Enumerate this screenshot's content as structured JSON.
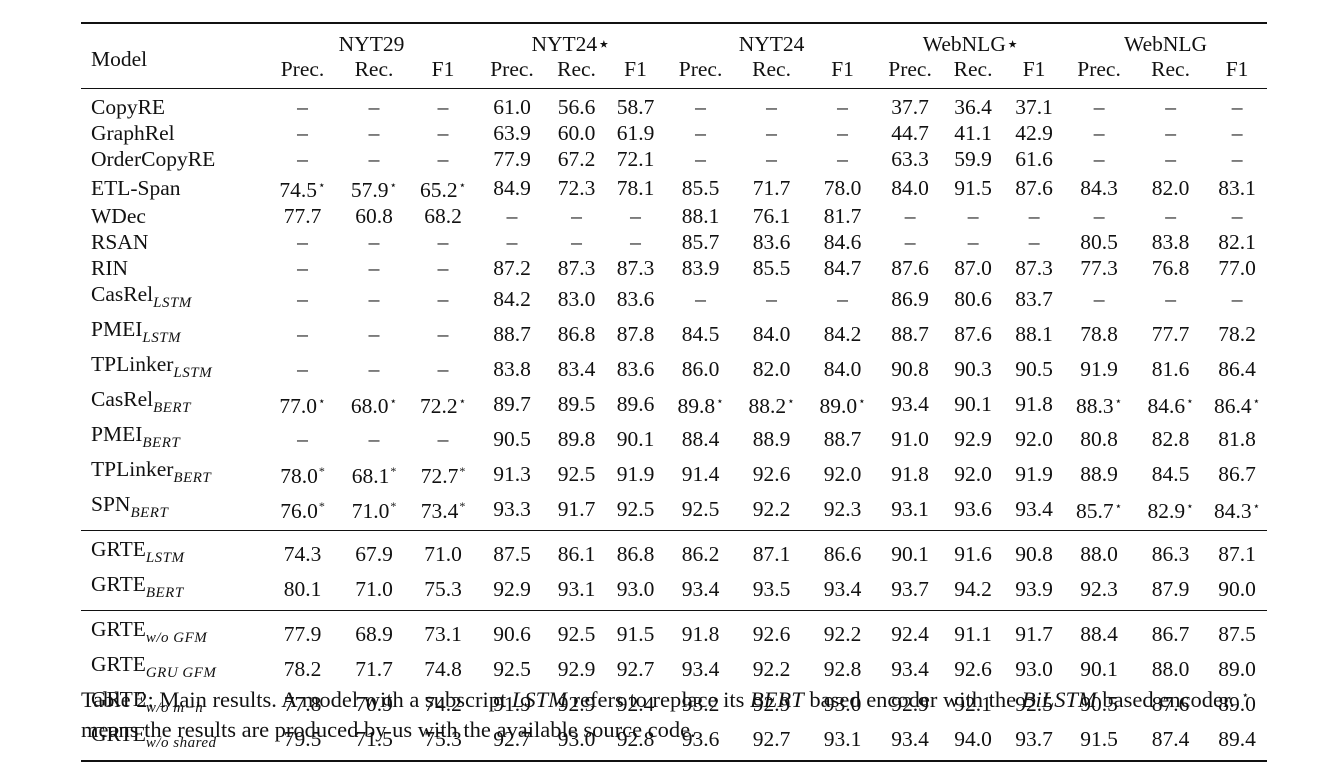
{
  "columns": {
    "model_header": "Model",
    "datasets": [
      "NYT29",
      "NYT24⋆",
      "NYT24",
      "WebNLG⋆",
      "WebNLG"
    ],
    "metrics": [
      "Prec.",
      "Rec.",
      "F1"
    ]
  },
  "sections": [
    {
      "rows": [
        {
          "name": "CopyRE",
          "sub": "",
          "cells": [
            "–",
            "–",
            "–",
            "61.0",
            "56.6",
            "58.7",
            "–",
            "–",
            "–",
            "37.7",
            "36.4",
            "37.1",
            "–",
            "–",
            "–"
          ]
        },
        {
          "name": "GraphRel",
          "sub": "",
          "cells": [
            "–",
            "–",
            "–",
            "63.9",
            "60.0",
            "61.9",
            "–",
            "–",
            "–",
            "44.7",
            "41.1",
            "42.9",
            "–",
            "–",
            "–"
          ]
        },
        {
          "name": "OrderCopyRE",
          "sub": "",
          "cells": [
            "–",
            "–",
            "–",
            "77.9",
            "67.2",
            "72.1",
            "–",
            "–",
            "–",
            "63.3",
            "59.9",
            "61.6",
            "–",
            "–",
            "–"
          ]
        },
        {
          "name": "ETL-Span",
          "sub": "",
          "cells": [
            "74.5⋆",
            "57.9⋆",
            "65.2⋆",
            "84.9",
            "72.3",
            "78.1",
            "85.5",
            "71.7",
            "78.0",
            "84.0",
            "91.5",
            "87.6",
            "84.3",
            "82.0",
            "83.1"
          ]
        },
        {
          "name": "WDec",
          "sub": "",
          "cells": [
            "77.7",
            "60.8",
            "68.2",
            "–",
            "–",
            "–",
            "88.1",
            "76.1",
            "81.7",
            "–",
            "–",
            "–",
            "–",
            "–",
            "–"
          ]
        },
        {
          "name": "RSAN",
          "sub": "",
          "cells": [
            "–",
            "–",
            "–",
            "–",
            "–",
            "–",
            "85.7",
            "83.6",
            "84.6",
            "–",
            "–",
            "–",
            "80.5",
            "83.8",
            "82.1"
          ]
        },
        {
          "name": "RIN",
          "sub": "",
          "cells": [
            "–",
            "–",
            "–",
            "87.2",
            "87.3",
            "87.3",
            "83.9",
            "85.5",
            "84.7",
            "87.6",
            "87.0",
            "87.3",
            "77.3",
            "76.8",
            "77.0"
          ]
        },
        {
          "name": "CasRel",
          "sub": "LSTM",
          "cells": [
            "–",
            "–",
            "–",
            "84.2",
            "83.0",
            "83.6",
            "–",
            "–",
            "–",
            "86.9",
            "80.6",
            "83.7",
            "–",
            "–",
            "–"
          ]
        },
        {
          "name": "PMEI",
          "sub": "LSTM",
          "cells": [
            "–",
            "–",
            "–",
            "88.7",
            "86.8",
            "87.8",
            "84.5",
            "84.0",
            "84.2",
            "88.7",
            "87.6",
            "88.1",
            "78.8",
            "77.7",
            "78.2"
          ]
        },
        {
          "name": "TPLinker",
          "sub": "LSTM",
          "cells": [
            "–",
            "–",
            "–",
            "83.8",
            "83.4",
            "83.6",
            "86.0",
            "82.0",
            "84.0",
            "90.8",
            "90.3",
            "90.5",
            "91.9",
            "81.6",
            "86.4"
          ]
        },
        {
          "name": "CasRel",
          "sub": "BERT",
          "cells": [
            "77.0⋆",
            "68.0⋆",
            "72.2⋆",
            "89.7",
            "89.5",
            "89.6",
            "89.8⋆",
            "88.2⋆",
            "89.0⋆",
            "93.4",
            "90.1",
            "91.8",
            "88.3⋆",
            "84.6⋆",
            "86.4⋆"
          ]
        },
        {
          "name": "PMEI",
          "sub": "BERT",
          "cells": [
            "–",
            "–",
            "–",
            "90.5",
            "89.8",
            "90.1",
            "88.4",
            "88.9",
            "88.7",
            "91.0",
            "92.9",
            "92.0",
            "80.8",
            "82.8",
            "81.8"
          ]
        },
        {
          "name": "TPLinker",
          "sub": "BERT",
          "cells": [
            "78.0*",
            "68.1*",
            "72.7*",
            "91.3",
            "92.5",
            "91.9",
            "91.4",
            "92.6",
            "92.0",
            "91.8",
            "92.0",
            "91.9",
            "88.9",
            "84.5",
            "86.7"
          ]
        },
        {
          "name": "SPN",
          "sub": "BERT",
          "cells": [
            "76.0*",
            "71.0*",
            "73.4*",
            "93.3",
            "91.7",
            "92.5",
            "92.5",
            "92.2",
            "92.3",
            "93.1",
            "93.6",
            "93.4",
            "85.7⋆",
            "82.9⋆",
            "84.3⋆"
          ],
          "bold": [
            3
          ]
        }
      ]
    },
    {
      "rows": [
        {
          "name": "GRTE",
          "sub": "LSTM",
          "cells": [
            "74.3",
            "67.9",
            "71.0",
            "87.5",
            "86.1",
            "86.8",
            "86.2",
            "87.1",
            "86.6",
            "90.1",
            "91.6",
            "90.8",
            "88.0",
            "86.3",
            "87.1"
          ]
        },
        {
          "name": "GRTE",
          "sub": "BERT",
          "cells": [
            "80.1",
            "71.0",
            "75.3",
            "92.9",
            "93.1",
            "93.0",
            "93.4",
            "93.5",
            "93.4",
            "93.7",
            "94.2",
            "93.9",
            "92.3",
            "87.9",
            "90.0"
          ],
          "bold": [
            0,
            1,
            2,
            4,
            5,
            6,
            7,
            8,
            9,
            10,
            11,
            12,
            13,
            14
          ]
        }
      ]
    },
    {
      "rows": [
        {
          "name": "GRTE",
          "sub": "w/o GFM",
          "cells": [
            "77.9",
            "68.9",
            "73.1",
            "90.6",
            "92.5",
            "91.5",
            "91.8",
            "92.6",
            "92.2",
            "92.4",
            "91.1",
            "91.7",
            "88.4",
            "86.7",
            "87.5"
          ]
        },
        {
          "name": "GRTE",
          "sub": "GRU GFM",
          "cells": [
            "78.2",
            "71.7",
            "74.8",
            "92.5",
            "92.9",
            "92.7",
            "93.4",
            "92.2",
            "92.8",
            "93.4",
            "92.6",
            "93.0",
            "90.1",
            "88.0",
            "89.0"
          ],
          "bold": [
            1,
            13
          ]
        },
        {
          "name": "GRTE",
          "sub": "w/o m−h",
          "cells": [
            "77.8",
            "70.9",
            "74.2",
            "91.9",
            "92.9",
            "92.4",
            "93.2",
            "92.9",
            "93.0",
            "92.9",
            "92.1",
            "92.5",
            "90.5",
            "87.6",
            "89.0"
          ]
        },
        {
          "name": "GRTE",
          "sub": "w/o shared",
          "cells": [
            "79.5",
            "71.5",
            "75.3",
            "92.7",
            "93.0",
            "92.8",
            "93.6",
            "92.7",
            "93.1",
            "93.4",
            "94.0",
            "93.7",
            "91.5",
            "87.4",
            "89.4"
          ],
          "bold": [
            2,
            6
          ]
        }
      ]
    }
  ],
  "caption": {
    "label": "Table 2:",
    "t1": " Main results. A model with a subscript ",
    "lstm": "LSTM",
    "t2": " refers to replace its ",
    "bert": "BERT",
    "t3": " based encoder with the ",
    "bilstm": "BiLSTM",
    "t4": " based encoder. ",
    "star": "⋆",
    "t5": " means the results are produced by us with the available source code."
  }
}
